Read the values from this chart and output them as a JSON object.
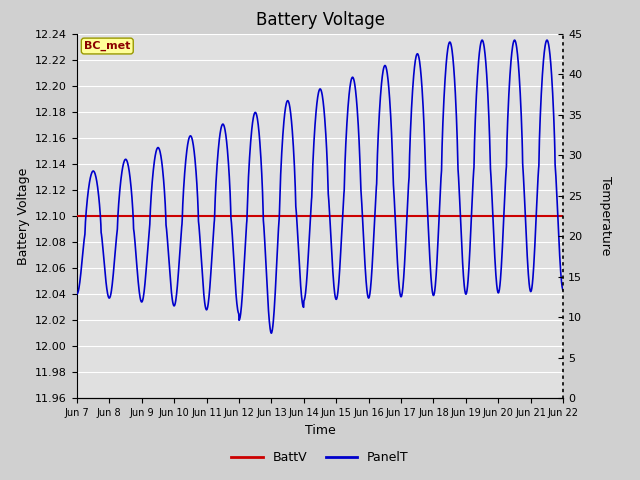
{
  "title": "Battery Voltage",
  "xlabel": "Time",
  "ylabel_left": "Battery Voltage",
  "ylabel_right": "Temperature",
  "annotation_text": "BC_met",
  "ylim_left": [
    11.96,
    12.24
  ],
  "ylim_right": [
    0,
    45
  ],
  "yticks_left": [
    11.96,
    11.98,
    12.0,
    12.02,
    12.04,
    12.06,
    12.08,
    12.1,
    12.12,
    12.14,
    12.16,
    12.18,
    12.2,
    12.22,
    12.24
  ],
  "yticks_right": [
    0,
    5,
    10,
    15,
    20,
    25,
    30,
    35,
    40,
    45
  ],
  "x_tick_labels": [
    "Jun 7",
    "Jun 8",
    "Jun 9",
    "Jun 10",
    "Jun 11",
    "Jun 12",
    "Jun 13",
    "Jun 14",
    "Jun 15",
    "Jun 16",
    "Jun 17",
    "Jun 18",
    "Jun 19",
    "Jun 20",
    "Jun 21",
    "Jun 22"
  ],
  "battv_value": 12.1,
  "battv_color": "#cc0000",
  "panelt_color": "#0000cc",
  "plot_bg_color": "#e0e0e0",
  "fig_bg_color": "#d0d0d0",
  "grid_color": "#ffffff",
  "legend_battv": "BattV",
  "legend_panelt": "PanelT",
  "title_fontsize": 12,
  "axis_label_fontsize": 9,
  "tick_fontsize": 8
}
